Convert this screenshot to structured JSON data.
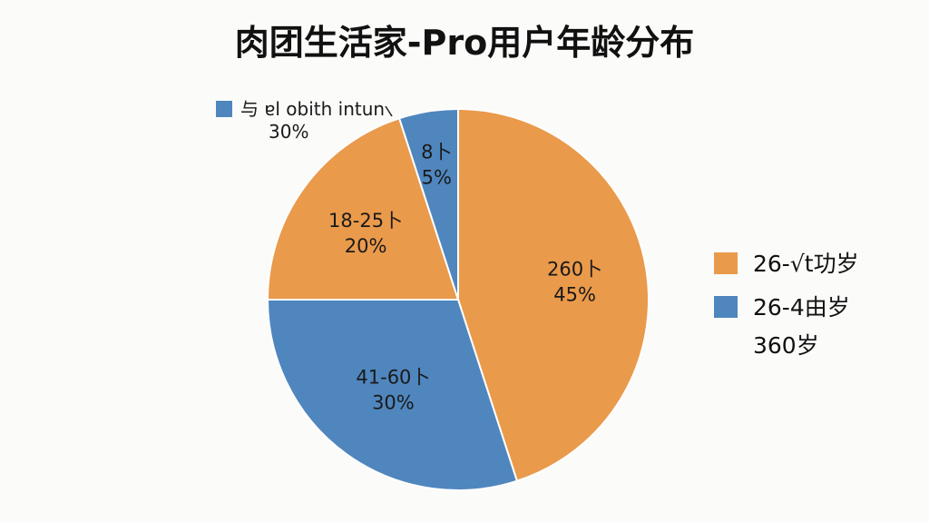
{
  "chart_data": {
    "type": "pie",
    "title": "肉团生活家-Pro用户年龄分布",
    "slices": [
      {
        "name": "260岁",
        "line1": "260卜",
        "value": 45,
        "pct_label": "45%",
        "color": "#ea9a4b"
      },
      {
        "name": "41-60岁",
        "line1": "41-60卜",
        "value": 30,
        "pct_label": "30%",
        "color": "#4f86be"
      },
      {
        "name": "18-25岁",
        "line1": "18-25卜",
        "value": 20,
        "pct_label": "20%",
        "color": "#ea9a4b"
      },
      {
        "name": "8岁",
        "line1": "8卜",
        "value": 5,
        "pct_label": "5%",
        "color": "#4f86be"
      }
    ],
    "callout": {
      "line1": "与 ɐl obith intun",
      "line2": "30%",
      "color": "#4f86be"
    },
    "legend": [
      {
        "label": "26-√t功岁",
        "color": "#ea9a4b"
      },
      {
        "label": "26-4由岁",
        "extra": "360岁",
        "color": "#4f86be"
      }
    ],
    "legend_position": "right"
  }
}
